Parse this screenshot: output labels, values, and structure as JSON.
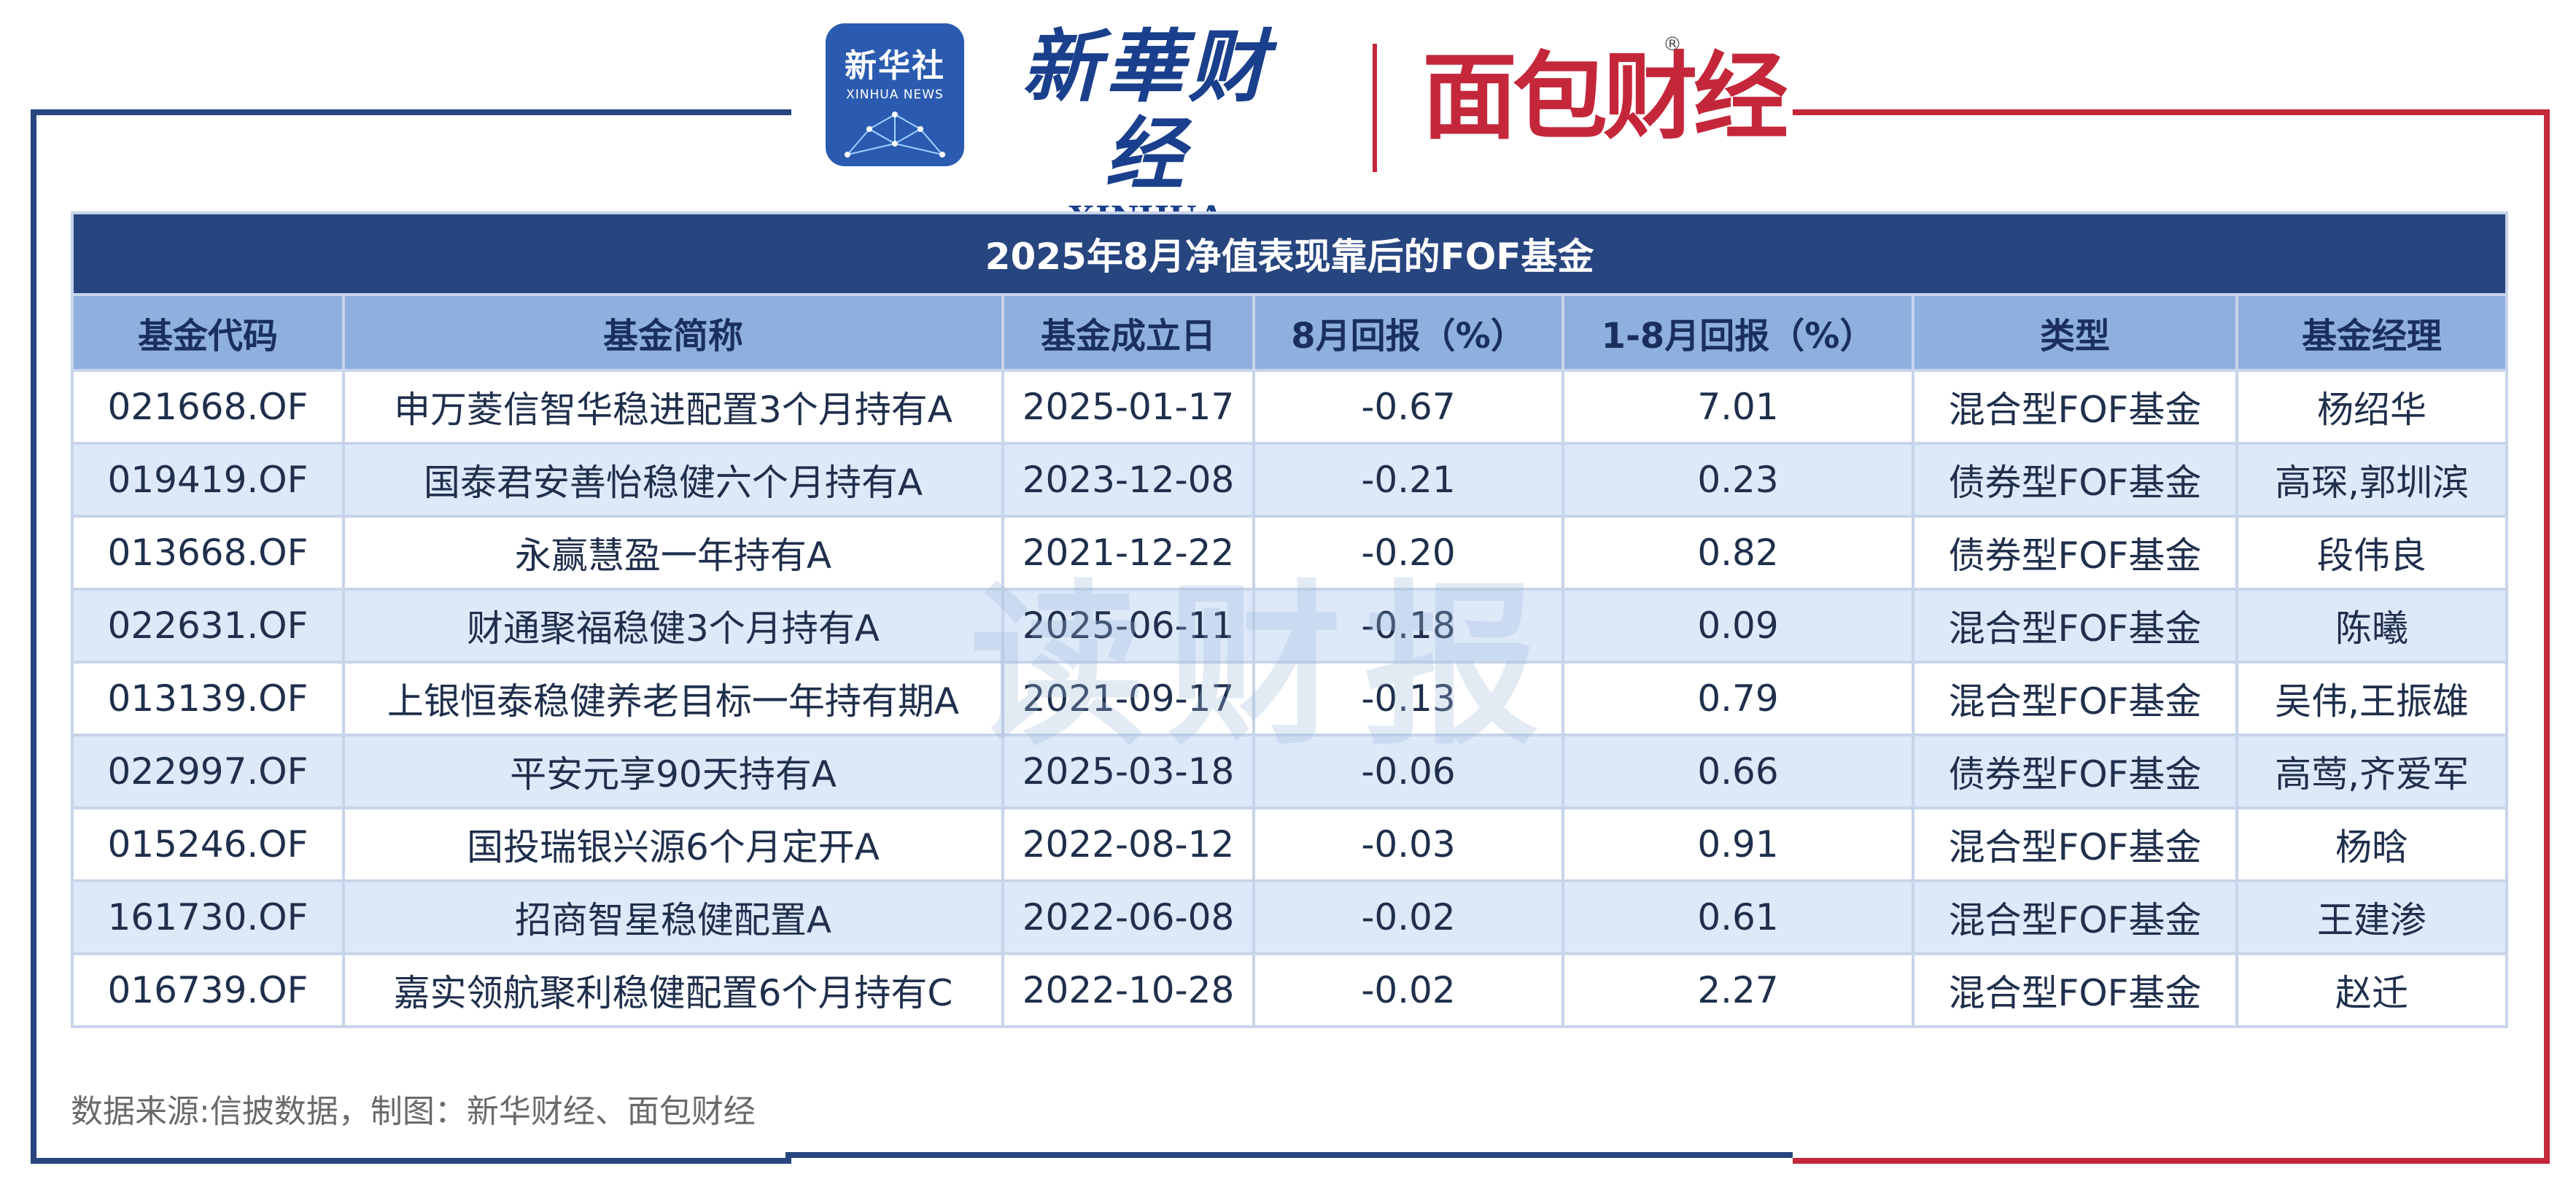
{
  "header": {
    "xinhua_badge_cn": "新华社",
    "xinhua_badge_en": "XINHUA NEWS",
    "brand_cn": "新華财经",
    "brand_en": "XINHUA FINANCE",
    "brand2": "面包财经",
    "registered_mark": "®"
  },
  "watermark": "读财报",
  "table": {
    "title": "2025年8月净值表现靠后的FOF基金",
    "columns": [
      "基金代码",
      "基金简称",
      "基金成立日",
      "8月回报（%）",
      "1-8月回报（%）",
      "类型",
      "基金经理"
    ],
    "rows": [
      {
        "code": "021668.OF",
        "name": "申万菱信智华稳进配置3个月持有A",
        "inception": "2025-01-17",
        "aug_return": "-0.67",
        "ytd_return": "7.01",
        "type": "混合型FOF基金",
        "manager": "杨绍华"
      },
      {
        "code": "019419.OF",
        "name": "国泰君安善怡稳健六个月持有A",
        "inception": "2023-12-08",
        "aug_return": "-0.21",
        "ytd_return": "0.23",
        "type": "债券型FOF基金",
        "manager": "高琛,郭圳滨"
      },
      {
        "code": "013668.OF",
        "name": "永赢慧盈一年持有A",
        "inception": "2021-12-22",
        "aug_return": "-0.20",
        "ytd_return": "0.82",
        "type": "债券型FOF基金",
        "manager": "段伟良"
      },
      {
        "code": "022631.OF",
        "name": "财通聚福稳健3个月持有A",
        "inception": "2025-06-11",
        "aug_return": "-0.18",
        "ytd_return": "0.09",
        "type": "混合型FOF基金",
        "manager": "陈曦"
      },
      {
        "code": "013139.OF",
        "name": "上银恒泰稳健养老目标一年持有期A",
        "inception": "2021-09-17",
        "aug_return": "-0.13",
        "ytd_return": "0.79",
        "type": "混合型FOF基金",
        "manager": "吴伟,王振雄"
      },
      {
        "code": "022997.OF",
        "name": "平安元享90天持有A",
        "inception": "2025-03-18",
        "aug_return": "-0.06",
        "ytd_return": "0.66",
        "type": "债券型FOF基金",
        "manager": "高莺,齐爱军"
      },
      {
        "code": "015246.OF",
        "name": "国投瑞银兴源6个月定开A",
        "inception": "2022-08-12",
        "aug_return": "-0.03",
        "ytd_return": "0.91",
        "type": "混合型FOF基金",
        "manager": "杨晗"
      },
      {
        "code": "161730.OF",
        "name": "招商智星稳健配置A",
        "inception": "2022-06-08",
        "aug_return": "-0.02",
        "ytd_return": "0.61",
        "type": "混合型FOF基金",
        "manager": "王建渗"
      },
      {
        "code": "016739.OF",
        "name": "嘉实领航聚利稳健配置6个月持有C",
        "inception": "2022-10-28",
        "aug_return": "-0.02",
        "ytd_return": "2.27",
        "type": "混合型FOF基金",
        "manager": "赵迁"
      }
    ]
  },
  "source": "数据来源:信披数据，制图：新华财经、面包财经",
  "colors": {
    "title_bg": "#27457f",
    "header_bg": "#8fb0df",
    "alt_row_bg": "#dde8f9",
    "frame_blue": "#27457f",
    "frame_red": "#c5273a"
  }
}
